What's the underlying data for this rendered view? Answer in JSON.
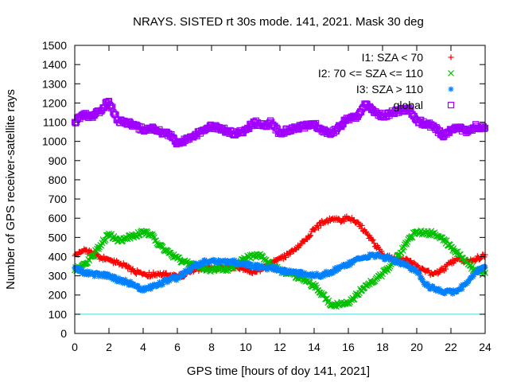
{
  "chart_data": {
    "type": "scatter",
    "title": "NRAYS. SISTED rt 30s mode. 141, 2021. Mask 30 deg",
    "xlabel": "GPS time [hours of doy 141, 2021]",
    "ylabel": "Number of GPS receiver-satellite rays",
    "xlim": [
      0,
      24
    ],
    "ylim": [
      0,
      1500
    ],
    "x_ticks": [
      "0",
      "2",
      "4",
      "6",
      "8",
      "10",
      "12",
      "14",
      "16",
      "18",
      "20",
      "22",
      "24"
    ],
    "y_ticks": [
      "0",
      "100",
      "200",
      "300",
      "400",
      "500",
      "600",
      "700",
      "800",
      "900",
      "1000",
      "1100",
      "1200",
      "1300",
      "1400",
      "1500"
    ],
    "legend_position": "top-right",
    "threshold_line": {
      "y": 100,
      "color": "#40d8e0"
    },
    "series": [
      {
        "name": "I1: SZA < 70",
        "marker": "+",
        "color": "#ff0000",
        "x": [
          0,
          0.5,
          1,
          1.5,
          2,
          2.5,
          3,
          3.5,
          4,
          4.5,
          5,
          5.5,
          6,
          6.5,
          7,
          7.5,
          8,
          8.5,
          9,
          9.5,
          10,
          10.5,
          11,
          11.5,
          12,
          12.5,
          13,
          13.5,
          14,
          14.5,
          15,
          15.5,
          16,
          16.5,
          17,
          17.5,
          18,
          18.5,
          19,
          19.5,
          20,
          20.5,
          21,
          21.5,
          22,
          22.5,
          23,
          23.5,
          24
        ],
        "values": [
          405,
          430,
          420,
          395,
          385,
          370,
          350,
          320,
          310,
          305,
          315,
          300,
          295,
          310,
          330,
          340,
          345,
          340,
          350,
          345,
          330,
          320,
          340,
          365,
          390,
          410,
          445,
          490,
          540,
          580,
          595,
          590,
          600,
          580,
          530,
          470,
          410,
          390,
          385,
          380,
          350,
          320,
          310,
          330,
          370,
          385,
          375,
          390,
          410
        ]
      },
      {
        "name": "I2: 70 <= SZA <= 110",
        "marker": "x",
        "color": "#00c000",
        "x": [
          0,
          0.5,
          1,
          1.5,
          2,
          2.5,
          3,
          3.5,
          4,
          4.5,
          5,
          5.5,
          6,
          6.5,
          7,
          7.5,
          8,
          8.5,
          9,
          9.5,
          10,
          10.5,
          11,
          11.5,
          12,
          12.5,
          13,
          13.5,
          14,
          14.5,
          15,
          15.5,
          16,
          16.5,
          17,
          17.5,
          18,
          18.5,
          19,
          19.5,
          20,
          20.5,
          21,
          21.5,
          22,
          22.5,
          23,
          23.5,
          24
        ],
        "values": [
          330,
          360,
          400,
          460,
          520,
          480,
          500,
          510,
          530,
          510,
          460,
          420,
          390,
          370,
          360,
          345,
          330,
          340,
          335,
          360,
          390,
          410,
          400,
          350,
          330,
          310,
          300,
          270,
          250,
          200,
          145,
          150,
          160,
          200,
          250,
          270,
          310,
          360,
          410,
          490,
          530,
          525,
          520,
          500,
          450,
          410,
          360,
          320,
          315
        ]
      },
      {
        "name": "I3: SZA > 110",
        "marker": "*",
        "color": "#0080ff",
        "x": [
          0,
          0.5,
          1,
          1.5,
          2,
          2.5,
          3,
          3.5,
          4,
          4.5,
          5,
          5.5,
          6,
          6.5,
          7,
          7.5,
          8,
          8.5,
          9,
          9.5,
          10,
          10.5,
          11,
          11.5,
          12,
          12.5,
          13,
          13.5,
          14,
          14.5,
          15,
          15.5,
          16,
          16.5,
          17,
          17.5,
          18,
          18.5,
          19,
          19.5,
          20,
          20.5,
          21,
          21.5,
          22,
          22.5,
          23,
          23.5,
          24
        ],
        "values": [
          340,
          320,
          310,
          305,
          300,
          280,
          270,
          250,
          230,
          240,
          260,
          280,
          290,
          320,
          350,
          370,
          380,
          370,
          375,
          370,
          360,
          350,
          345,
          340,
          330,
          320,
          315,
          310,
          300,
          305,
          320,
          345,
          360,
          385,
          400,
          405,
          400,
          385,
          370,
          350,
          320,
          260,
          230,
          220,
          215,
          230,
          270,
          320,
          345
        ]
      },
      {
        "name": "global",
        "marker": "square",
        "color": "#a000ff",
        "x": [
          0,
          0.5,
          1,
          1.5,
          2,
          2.5,
          3,
          3.5,
          4,
          4.5,
          5,
          5.5,
          6,
          6.5,
          7,
          7.5,
          8,
          8.5,
          9,
          9.5,
          10,
          10.5,
          11,
          11.5,
          12,
          12.5,
          13,
          13.5,
          14,
          14.5,
          15,
          15.5,
          16,
          16.5,
          17,
          17.5,
          18,
          18.5,
          19,
          19.5,
          20,
          20.5,
          21,
          21.5,
          22,
          22.5,
          23,
          23.5,
          24
        ],
        "values": [
          1100,
          1140,
          1130,
          1160,
          1210,
          1110,
          1100,
          1080,
          1060,
          1070,
          1050,
          1040,
          990,
          1010,
          1030,
          1060,
          1080,
          1070,
          1050,
          1040,
          1060,
          1100,
          1080,
          1100,
          1040,
          1060,
          1070,
          1080,
          1090,
          1060,
          1040,
          1080,
          1120,
          1130,
          1190,
          1150,
          1130,
          1150,
          1160,
          1170,
          1110,
          1090,
          1080,
          1030,
          1060,
          1070,
          1050,
          1080,
          1070
        ]
      }
    ]
  }
}
